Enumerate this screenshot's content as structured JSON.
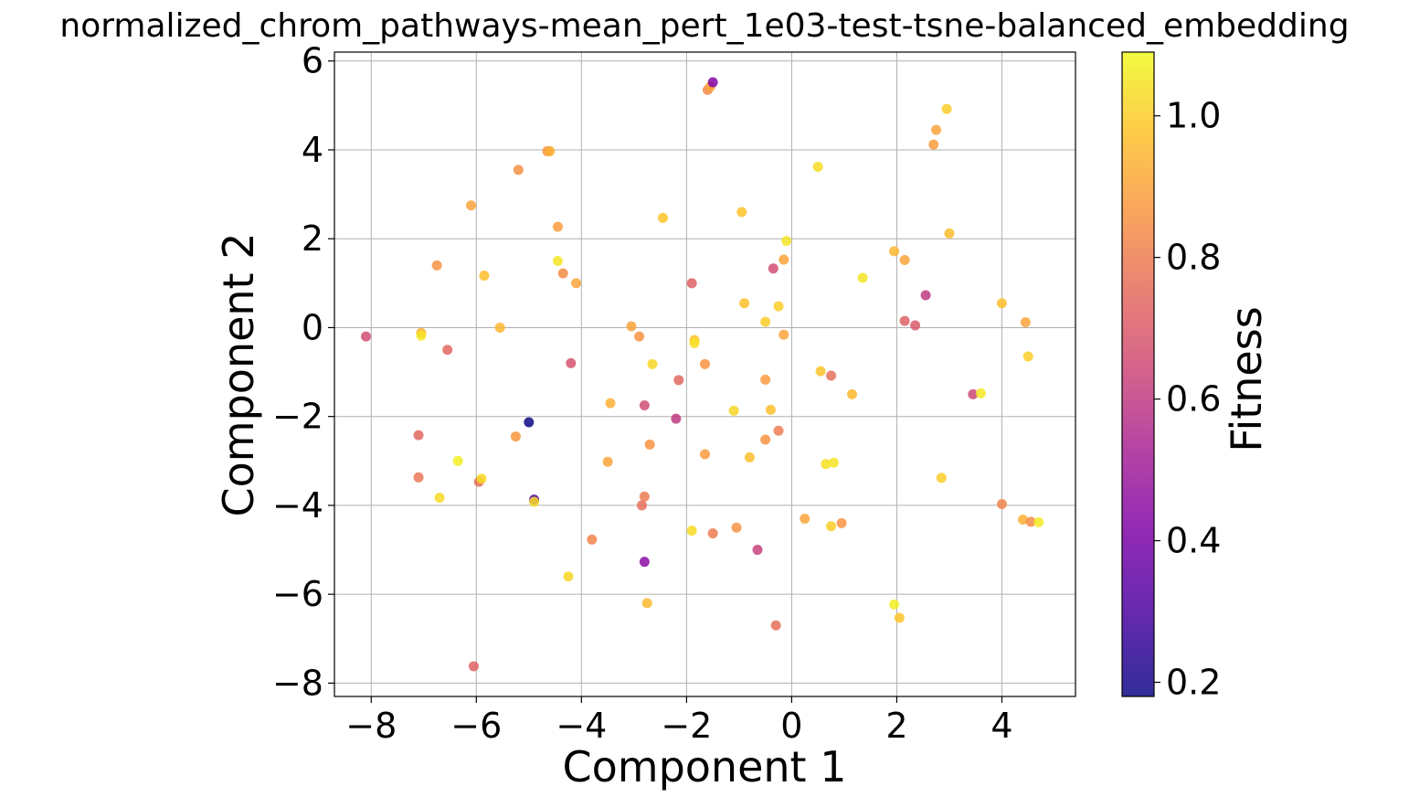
{
  "chart_data": {
    "type": "scatter",
    "title": "normalized_chrom_pathways-mean_pert_1e03-test-tsne-balanced_embedding",
    "xlabel": "Component 1",
    "ylabel": "Component 2",
    "xlim": [
      -8.7,
      5.4
    ],
    "ylim": [
      -8.3,
      6.2
    ],
    "xticks": [
      -8,
      -6,
      -4,
      -2,
      0,
      2,
      4
    ],
    "yticks": [
      -8,
      -6,
      -4,
      -2,
      0,
      2,
      4,
      6
    ],
    "xtick_labels": [
      "−8",
      "−6",
      "−4",
      "−2",
      "0",
      "2",
      "4"
    ],
    "ytick_labels": [
      "−8",
      "−6",
      "−4",
      "−2",
      "0",
      "2",
      "4",
      "6"
    ],
    "grid": true,
    "colormap": "plasma",
    "colorbar": {
      "label": "Fitness",
      "range": [
        0.18,
        1.09
      ],
      "ticks": [
        0.2,
        0.4,
        0.6,
        0.8,
        1.0
      ],
      "tick_labels": [
        "0.2",
        "0.4",
        "0.6",
        "0.8",
        "1.0"
      ]
    },
    "points": [
      {
        "x": -8.1,
        "y": -0.2,
        "c": 0.66
      },
      {
        "x": -7.05,
        "y": -0.12,
        "c": 0.93
      },
      {
        "x": -7.05,
        "y": -0.18,
        "c": 1.05
      },
      {
        "x": -6.55,
        "y": -0.5,
        "c": 0.74
      },
      {
        "x": -6.75,
        "y": 1.4,
        "c": 0.86
      },
      {
        "x": -6.1,
        "y": 2.75,
        "c": 0.9
      },
      {
        "x": -5.85,
        "y": 1.17,
        "c": 0.97
      },
      {
        "x": -5.55,
        "y": 0.0,
        "c": 0.95
      },
      {
        "x": -5.2,
        "y": 3.55,
        "c": 0.85
      },
      {
        "x": -4.65,
        "y": 3.97,
        "c": 0.86
      },
      {
        "x": -4.6,
        "y": 3.97,
        "c": 0.93
      },
      {
        "x": -4.45,
        "y": 2.27,
        "c": 0.88
      },
      {
        "x": -4.45,
        "y": 1.5,
        "c": 1.05
      },
      {
        "x": -4.35,
        "y": 1.22,
        "c": 0.84
      },
      {
        "x": -4.1,
        "y": 1.0,
        "c": 0.9
      },
      {
        "x": -4.2,
        "y": -0.8,
        "c": 0.68
      },
      {
        "x": -7.1,
        "y": -2.42,
        "c": 0.74
      },
      {
        "x": -7.1,
        "y": -3.37,
        "c": 0.78
      },
      {
        "x": -6.7,
        "y": -3.83,
        "c": 1.03
      },
      {
        "x": -6.35,
        "y": -3.0,
        "c": 1.07
      },
      {
        "x": -5.95,
        "y": -3.47,
        "c": 0.76
      },
      {
        "x": -5.9,
        "y": -3.4,
        "c": 1.03
      },
      {
        "x": -5.25,
        "y": -2.45,
        "c": 0.87
      },
      {
        "x": -5.0,
        "y": -2.13,
        "c": 0.18
      },
      {
        "x": -4.9,
        "y": -3.87,
        "c": 0.3
      },
      {
        "x": -4.9,
        "y": -3.92,
        "c": 1.03
      },
      {
        "x": -6.05,
        "y": -7.62,
        "c": 0.72
      },
      {
        "x": -3.8,
        "y": -4.77,
        "c": 0.82
      },
      {
        "x": -4.25,
        "y": -5.6,
        "c": 1.02
      },
      {
        "x": -3.5,
        "y": -3.02,
        "c": 0.9
      },
      {
        "x": -3.45,
        "y": -1.7,
        "c": 0.93
      },
      {
        "x": -3.05,
        "y": 0.03,
        "c": 0.9
      },
      {
        "x": -2.9,
        "y": -0.2,
        "c": 0.86
      },
      {
        "x": -2.85,
        "y": -4.0,
        "c": 0.76
      },
      {
        "x": -2.8,
        "y": -3.8,
        "c": 0.8
      },
      {
        "x": -2.8,
        "y": -1.75,
        "c": 0.66
      },
      {
        "x": -2.8,
        "y": -5.27,
        "c": 0.44
      },
      {
        "x": -2.75,
        "y": -6.2,
        "c": 0.95
      },
      {
        "x": -2.7,
        "y": -2.63,
        "c": 0.86
      },
      {
        "x": -2.65,
        "y": -0.82,
        "c": 1.02
      },
      {
        "x": -2.45,
        "y": 2.47,
        "c": 0.98
      },
      {
        "x": -2.2,
        "y": -2.05,
        "c": 0.6
      },
      {
        "x": -2.15,
        "y": -1.18,
        "c": 0.74
      },
      {
        "x": -1.9,
        "y": 1.0,
        "c": 0.72
      },
      {
        "x": -1.9,
        "y": -4.57,
        "c": 1.03
      },
      {
        "x": -1.85,
        "y": -0.28,
        "c": 0.98
      },
      {
        "x": -1.85,
        "y": -0.35,
        "c": 1.04
      },
      {
        "x": -1.65,
        "y": -0.82,
        "c": 0.86
      },
      {
        "x": -1.65,
        "y": -2.85,
        "c": 0.88
      },
      {
        "x": -1.6,
        "y": 5.35,
        "c": 0.83
      },
      {
        "x": -1.55,
        "y": 5.42,
        "c": 0.9
      },
      {
        "x": -1.5,
        "y": 5.52,
        "c": 0.42
      },
      {
        "x": -1.5,
        "y": -4.63,
        "c": 0.8
      },
      {
        "x": -1.1,
        "y": -1.87,
        "c": 1.02
      },
      {
        "x": -1.05,
        "y": -4.5,
        "c": 0.86
      },
      {
        "x": -0.95,
        "y": 2.6,
        "c": 0.98
      },
      {
        "x": -0.9,
        "y": 0.55,
        "c": 0.97
      },
      {
        "x": -0.8,
        "y": -2.92,
        "c": 0.97
      },
      {
        "x": -0.65,
        "y": -5.0,
        "c": 0.62
      },
      {
        "x": -0.5,
        "y": 0.13,
        "c": 1.0
      },
      {
        "x": -0.5,
        "y": -1.17,
        "c": 0.88
      },
      {
        "x": -0.5,
        "y": -2.52,
        "c": 0.86
      },
      {
        "x": -0.4,
        "y": -1.85,
        "c": 0.97
      },
      {
        "x": -0.35,
        "y": 1.33,
        "c": 0.66
      },
      {
        "x": -0.3,
        "y": -6.7,
        "c": 0.76
      },
      {
        "x": -0.25,
        "y": -2.32,
        "c": 0.8
      },
      {
        "x": -0.25,
        "y": 0.48,
        "c": 1.0
      },
      {
        "x": -0.15,
        "y": -0.16,
        "c": 0.9
      },
      {
        "x": -0.15,
        "y": 1.53,
        "c": 0.9
      },
      {
        "x": -0.1,
        "y": 1.95,
        "c": 1.05
      },
      {
        "x": 0.25,
        "y": -4.3,
        "c": 0.9
      },
      {
        "x": 0.5,
        "y": 3.62,
        "c": 1.03
      },
      {
        "x": 0.55,
        "y": -0.98,
        "c": 0.98
      },
      {
        "x": 0.65,
        "y": -3.07,
        "c": 1.04
      },
      {
        "x": 0.75,
        "y": -1.08,
        "c": 0.76
      },
      {
        "x": 0.75,
        "y": -4.47,
        "c": 1.0
      },
      {
        "x": 0.8,
        "y": -3.04,
        "c": 1.05
      },
      {
        "x": 0.95,
        "y": -4.4,
        "c": 0.86
      },
      {
        "x": 1.15,
        "y": -1.5,
        "c": 0.95
      },
      {
        "x": 1.35,
        "y": 1.12,
        "c": 1.05
      },
      {
        "x": 1.95,
        "y": 1.72,
        "c": 0.95
      },
      {
        "x": 1.95,
        "y": -6.23,
        "c": 1.07
      },
      {
        "x": 2.05,
        "y": -6.53,
        "c": 0.98
      },
      {
        "x": 2.15,
        "y": 1.52,
        "c": 0.9
      },
      {
        "x": 2.15,
        "y": 0.15,
        "c": 0.72
      },
      {
        "x": 2.35,
        "y": 0.05,
        "c": 0.7
      },
      {
        "x": 2.55,
        "y": 0.73,
        "c": 0.6
      },
      {
        "x": 2.7,
        "y": 4.12,
        "c": 0.88
      },
      {
        "x": 2.75,
        "y": 4.45,
        "c": 0.9
      },
      {
        "x": 2.85,
        "y": -3.38,
        "c": 1.0
      },
      {
        "x": 2.95,
        "y": 4.92,
        "c": 1.0
      },
      {
        "x": 3.0,
        "y": 2.12,
        "c": 0.96
      },
      {
        "x": 3.45,
        "y": -1.5,
        "c": 0.64
      },
      {
        "x": 3.6,
        "y": -1.48,
        "c": 1.06
      },
      {
        "x": 4.0,
        "y": 0.55,
        "c": 0.97
      },
      {
        "x": 4.0,
        "y": -3.97,
        "c": 0.82
      },
      {
        "x": 4.4,
        "y": -4.32,
        "c": 0.93
      },
      {
        "x": 4.45,
        "y": 0.12,
        "c": 0.9
      },
      {
        "x": 4.5,
        "y": -0.65,
        "c": 1.0
      },
      {
        "x": 4.55,
        "y": -4.37,
        "c": 0.84
      },
      {
        "x": 4.7,
        "y": -4.38,
        "c": 1.06
      }
    ]
  }
}
